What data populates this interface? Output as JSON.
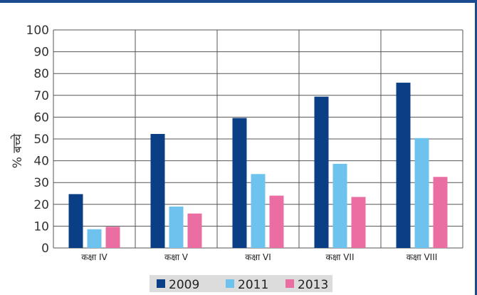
{
  "chart_data": {
    "type": "bar",
    "categories": [
      "कक्षा IV",
      "कक्षा V",
      "कक्षा VI",
      "कक्षा VII",
      "कक्षा VIII"
    ],
    "series": [
      {
        "name": "2009",
        "color": "#0a3f86",
        "values": [
          24.7,
          52.3,
          59.6,
          69.4,
          75.8
        ]
      },
      {
        "name": "2011",
        "color": "#6ec3ee",
        "values": [
          8.6,
          19.0,
          33.9,
          38.6,
          50.4
        ]
      },
      {
        "name": "2013",
        "color": "#ea6ea2",
        "values": [
          9.7,
          15.8,
          24.0,
          23.4,
          32.6
        ]
      }
    ],
    "yticks": [
      "0",
      "10",
      "20",
      "30",
      "40",
      "50",
      "60",
      "70",
      "80",
      "90",
      "100"
    ],
    "ylim": [
      0,
      100
    ],
    "ylabel": "% बच्चे",
    "xlabel": "",
    "title": "",
    "grid": true,
    "legend_position": "bottom"
  }
}
